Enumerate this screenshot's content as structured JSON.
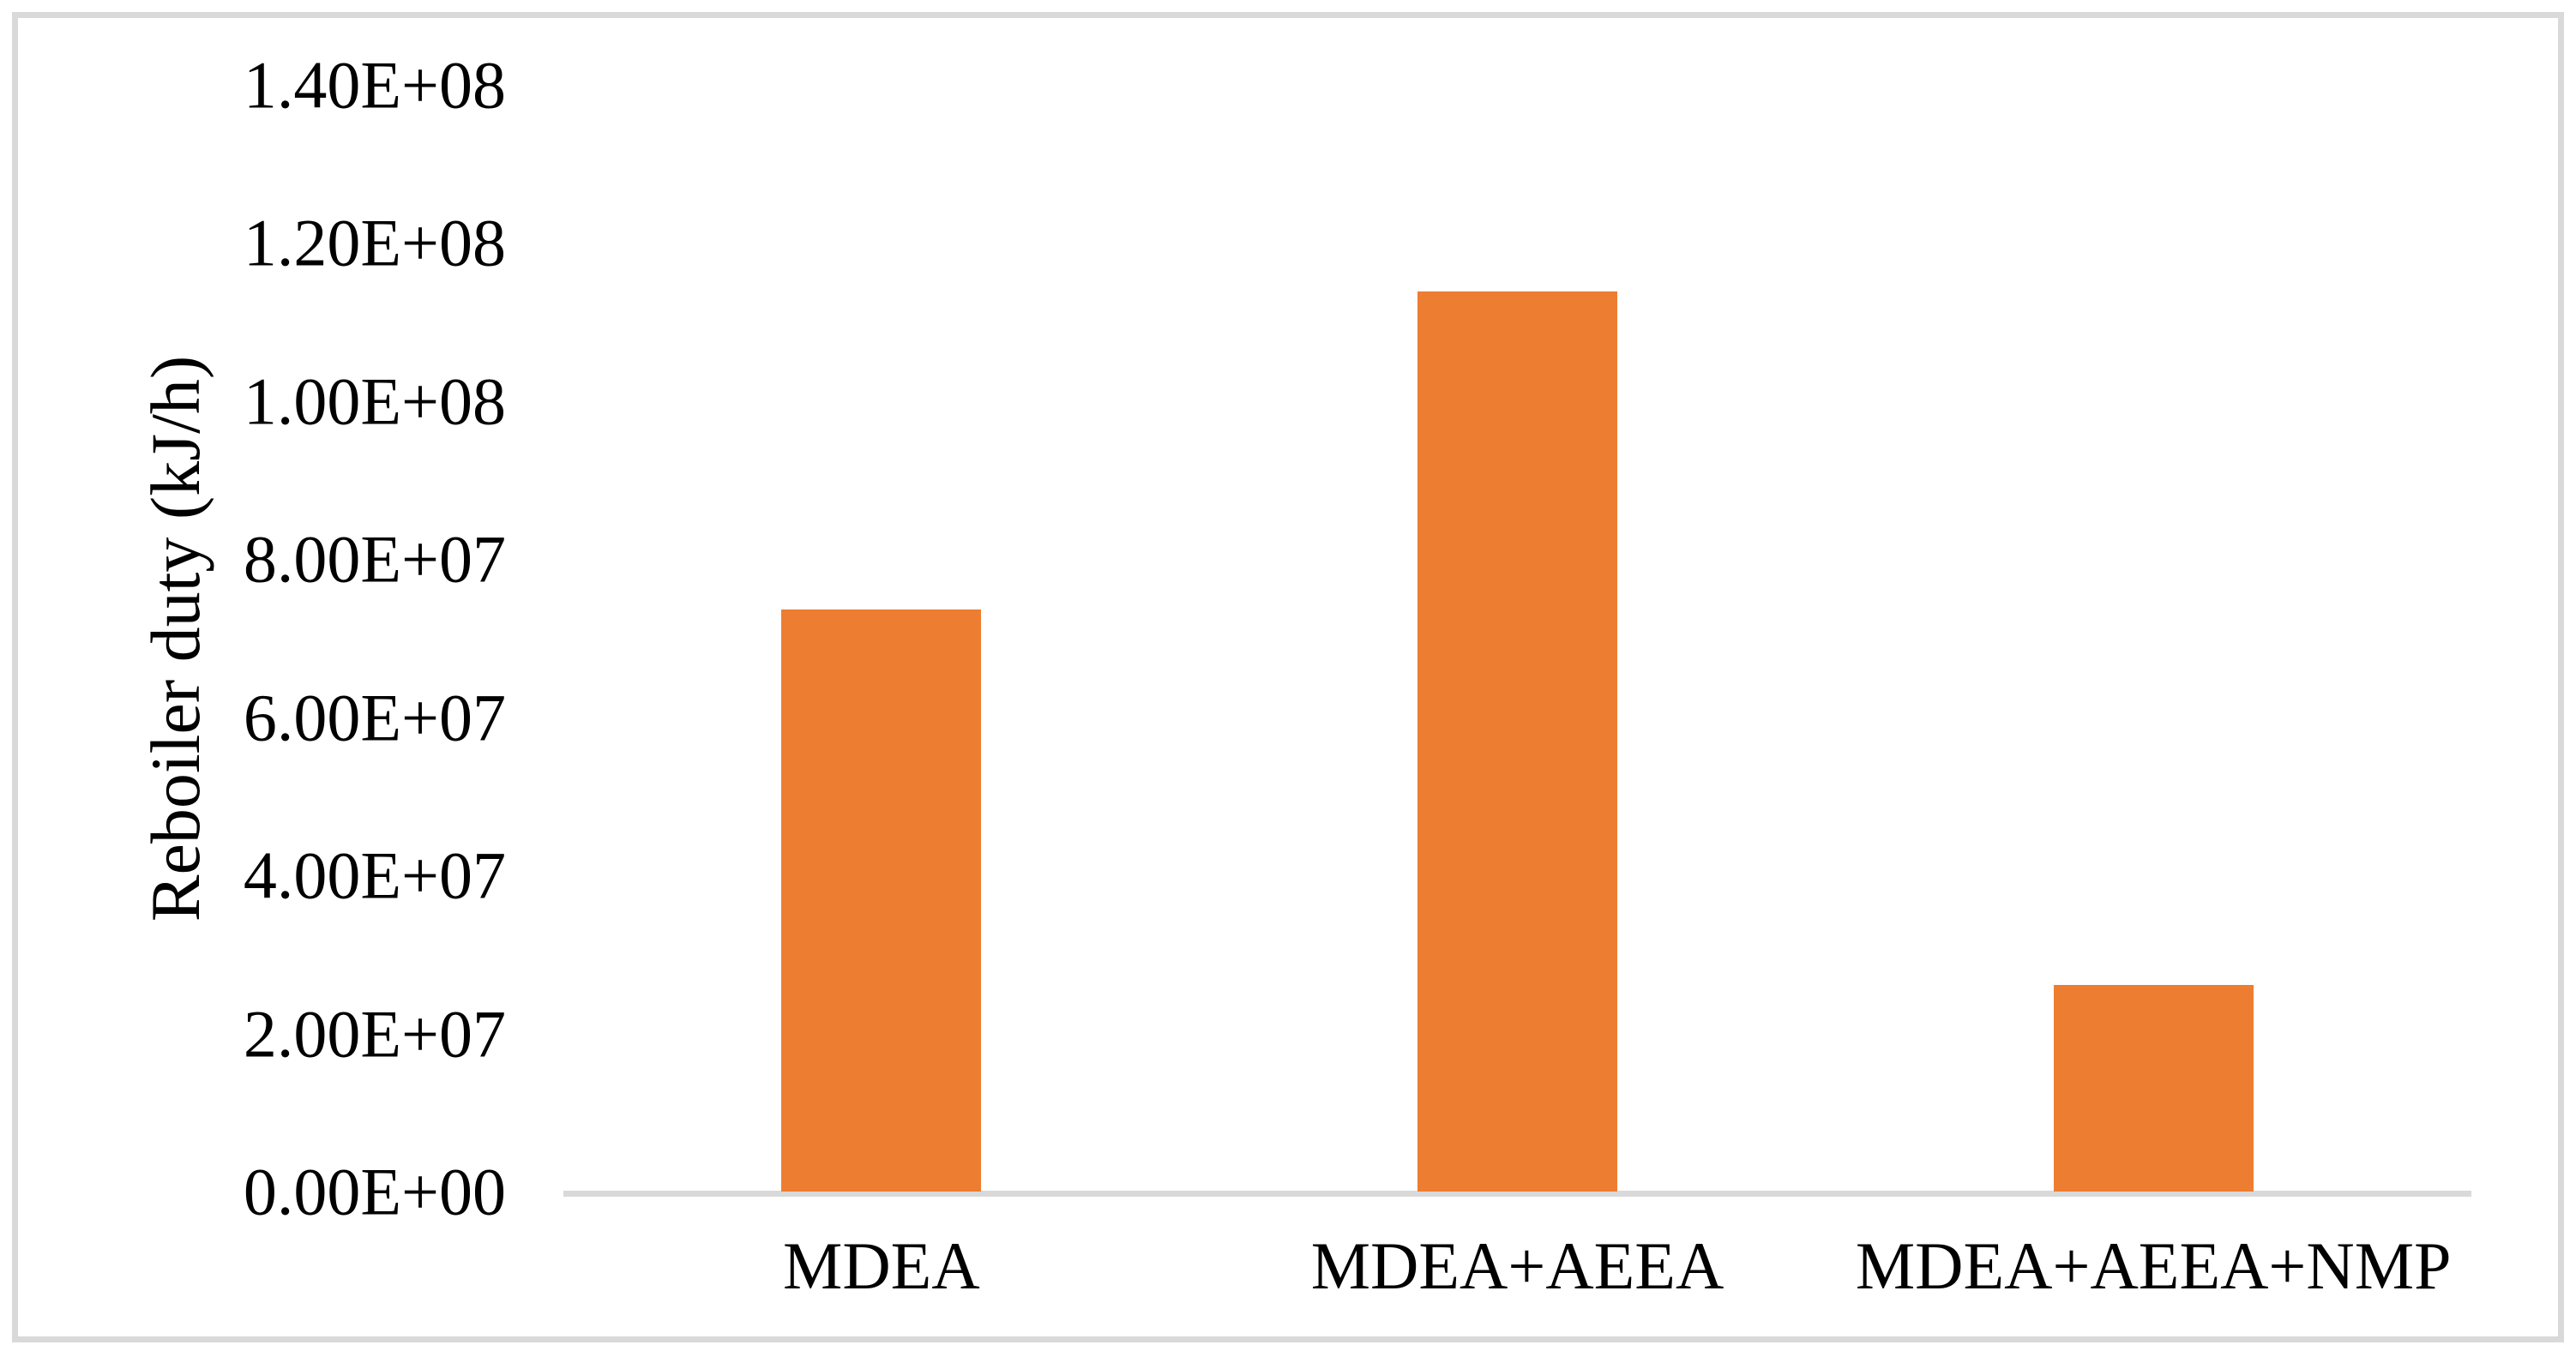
{
  "page": {
    "background_color": "#ffffff",
    "frame_border_color": "#d9d9d9"
  },
  "chart_data": {
    "type": "bar",
    "title": "",
    "xlabel": "",
    "ylabel": "Reboiler duty (kJ/h)",
    "categories": [
      "MDEA",
      "MDEA+AEEA",
      "MDEA+AEEA+NMP"
    ],
    "values": [
      73700000,
      114000000,
      26200000
    ],
    "values_scientific": [
      "7.37E+07",
      "1.14E+08",
      "2.62E+07"
    ],
    "ylim": [
      0,
      140000000
    ],
    "ytick_step": 20000000,
    "yticks": [
      "0.00E+00",
      "2.00E+07",
      "4.00E+07",
      "6.00E+07",
      "8.00E+07",
      "1.00E+08",
      "1.20E+08",
      "1.40E+08"
    ],
    "grid": false,
    "legend_position": "none",
    "bar_color": "#ED7D31",
    "axis_line_color": "#D9D9D9",
    "text_color": "#000000"
  }
}
